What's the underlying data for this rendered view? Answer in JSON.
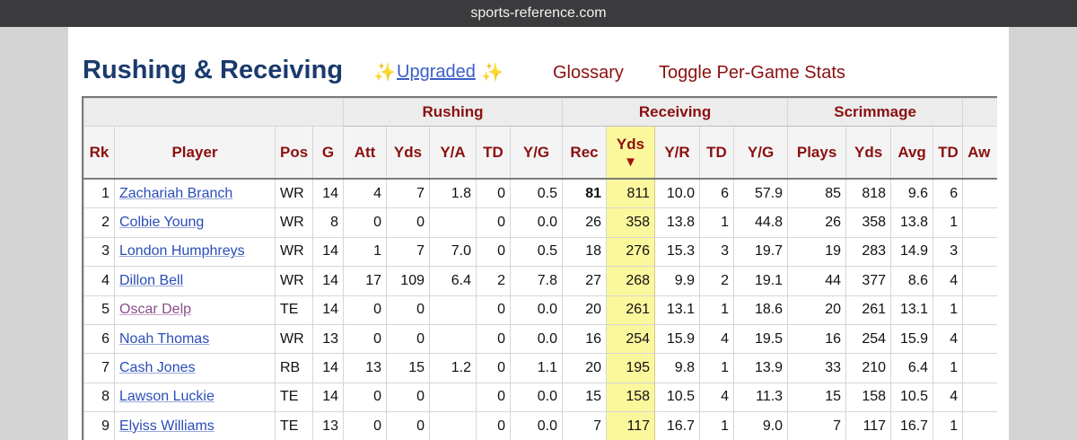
{
  "browser": {
    "url": "sports-reference.com"
  },
  "header": {
    "title": "Rushing & Receiving",
    "spark_icon": "✨",
    "upgraded_label": "Upgraded",
    "glossary_label": "Glossary",
    "toggle_label": "Toggle Per-Game Stats"
  },
  "table": {
    "groups": {
      "rushing": "Rushing",
      "receiving": "Receiving",
      "scrimmage": "Scrimmage"
    },
    "columns": [
      "Rk",
      "Player",
      "Pos",
      "G",
      "Att",
      "Yds",
      "Y/A",
      "TD",
      "Y/G",
      "Rec",
      "Yds",
      "Y/R",
      "TD",
      "Y/G",
      "Plays",
      "Yds",
      "Avg",
      "TD",
      "Aw"
    ],
    "sort_indicator": "▼",
    "rows": [
      [
        "1",
        "Zachariah Branch",
        "WR",
        "14",
        "4",
        "7",
        "1.8",
        "0",
        "0.5",
        "81",
        "811",
        "10.0",
        "6",
        "57.9",
        "85",
        "818",
        "9.6",
        "6"
      ],
      [
        "2",
        "Colbie Young",
        "WR",
        "8",
        "0",
        "0",
        "",
        "0",
        "0.0",
        "26",
        "358",
        "13.8",
        "1",
        "44.8",
        "26",
        "358",
        "13.8",
        "1"
      ],
      [
        "3",
        "London Humphreys",
        "WR",
        "14",
        "1",
        "7",
        "7.0",
        "0",
        "0.5",
        "18",
        "276",
        "15.3",
        "3",
        "19.7",
        "19",
        "283",
        "14.9",
        "3"
      ],
      [
        "4",
        "Dillon Bell",
        "WR",
        "14",
        "17",
        "109",
        "6.4",
        "2",
        "7.8",
        "27",
        "268",
        "9.9",
        "2",
        "19.1",
        "44",
        "377",
        "8.6",
        "4"
      ],
      [
        "5",
        "Oscar Delp",
        "TE",
        "14",
        "0",
        "0",
        "",
        "0",
        "0.0",
        "20",
        "261",
        "13.1",
        "1",
        "18.6",
        "20",
        "261",
        "13.1",
        "1"
      ],
      [
        "6",
        "Noah Thomas",
        "WR",
        "13",
        "0",
        "0",
        "",
        "0",
        "0.0",
        "16",
        "254",
        "15.9",
        "4",
        "19.5",
        "16",
        "254",
        "15.9",
        "4"
      ],
      [
        "7",
        "Cash Jones",
        "RB",
        "14",
        "13",
        "15",
        "1.2",
        "0",
        "1.1",
        "20",
        "195",
        "9.8",
        "1",
        "13.9",
        "33",
        "210",
        "6.4",
        "1"
      ],
      [
        "8",
        "Lawson Luckie",
        "TE",
        "14",
        "0",
        "0",
        "",
        "0",
        "0.0",
        "15",
        "158",
        "10.5",
        "4",
        "11.3",
        "15",
        "158",
        "10.5",
        "4"
      ],
      [
        "9",
        "Elyiss Williams",
        "TE",
        "13",
        "0",
        "0",
        "",
        "0",
        "0.0",
        "7",
        "117",
        "16.7",
        "1",
        "9.0",
        "7",
        "117",
        "16.7",
        "1"
      ]
    ]
  }
}
